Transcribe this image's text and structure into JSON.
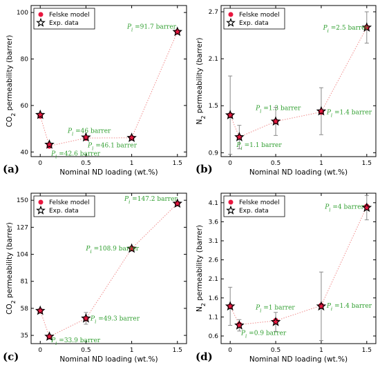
{
  "chart_data": [
    {
      "type": "scatter",
      "panel": "(a)",
      "xlabel": "Nominal ND loading (wt.%)",
      "ylabel": "CO2 permeability (barrer)",
      "ylabel_main": "CO",
      "ylabel_sub": "2",
      "ylabel_rest": " permeability (barrer)",
      "xlim": [
        -0.1,
        1.6
      ],
      "ylim": [
        38,
        103
      ],
      "xticks": [
        0,
        0.5,
        1,
        1.5
      ],
      "xtick_labels": [
        "0",
        "0.5",
        "1",
        "1.5"
      ],
      "yticks": [
        40,
        60,
        80,
        100
      ],
      "ytick_labels": [
        "40",
        "60",
        "80",
        "100"
      ],
      "legend": [
        "Felske model",
        "Exp. data"
      ],
      "series": [
        {
          "name": "Felske model",
          "x": [
            0,
            0.1,
            0.5,
            1,
            1.5
          ],
          "y": [
            55.5,
            42.6,
            46,
            46.1,
            91.7
          ]
        },
        {
          "name": "Exp. data",
          "x": [
            0,
            0.1,
            0.5,
            1,
            1.5
          ],
          "y": [
            56,
            43.2,
            46.3,
            46.1,
            91.7
          ],
          "err": [
            0,
            0,
            0,
            0,
            0
          ]
        }
      ],
      "annotations": [
        {
          "text": "=42.6 barrer",
          "x": 0.1,
          "y": 42.6,
          "dx": 0.02,
          "dy": -3.2
        },
        {
          "text": "=46 barrer",
          "x": 0.5,
          "y": 46,
          "dx": -0.2,
          "dy": 3.2
        },
        {
          "text": "=46.1 barrer",
          "x": 1,
          "y": 46.1,
          "dx": -0.48,
          "dy": -3.2
        },
        {
          "text": "=91.7 barrer",
          "x": 1.5,
          "y": 91.7,
          "dx": -0.55,
          "dy": 2.2
        }
      ]
    },
    {
      "type": "scatter",
      "panel": "(b)",
      "xlabel": "Nominal ND loading (wt.%)",
      "ylabel": "N2 permeability (barrer)",
      "ylabel_main": "N",
      "ylabel_sub": "2",
      "ylabel_rest": " permeability (barrer)",
      "xlim": [
        -0.1,
        1.6
      ],
      "ylim": [
        0.85,
        2.78
      ],
      "xticks": [
        0,
        0.5,
        1,
        1.5
      ],
      "xtick_labels": [
        "0",
        "0.5",
        "1",
        "1.5"
      ],
      "yticks": [
        0.9,
        1.5,
        2.1,
        2.7
      ],
      "ytick_labels": [
        "0.9",
        "1.5",
        "2.1",
        "2.7"
      ],
      "legend": [
        "Felske model",
        "Exp. data"
      ],
      "series": [
        {
          "name": "Felske model",
          "x": [
            0,
            0.1,
            0.5,
            1,
            1.5
          ],
          "y": [
            1.38,
            1.1,
            1.3,
            1.42,
            2.5
          ]
        },
        {
          "name": "Exp. data",
          "x": [
            0,
            0.1,
            0.5,
            1,
            1.5
          ],
          "y": [
            1.38,
            1.1,
            1.3,
            1.43,
            2.5
          ],
          "err": [
            0.5,
            0.15,
            0.18,
            0.3,
            0.2
          ]
        }
      ],
      "annotations": [
        {
          "text": "=1.1 barrer",
          "x": 0.1,
          "y": 1.1,
          "dx": -0.03,
          "dy": -0.1
        },
        {
          "text": "=1.3 barrer",
          "x": 0.5,
          "y": 1.3,
          "dx": -0.22,
          "dy": 0.17
        },
        {
          "text": "=1.4 barrer",
          "x": 1,
          "y": 1.42,
          "dx": 0.06,
          "dy": 0
        },
        {
          "text": "=2.5 barrer",
          "x": 1.5,
          "y": 2.5,
          "dx": -0.48,
          "dy": 0
        }
      ]
    },
    {
      "type": "scatter",
      "panel": "(c)",
      "xlabel": "Nominal ND loading (wt.%)",
      "ylabel": "CO2 permeability (barrer)",
      "ylabel_main": "CO",
      "ylabel_sub": "2",
      "ylabel_rest": " permeability (barrer)",
      "xlim": [
        -0.1,
        1.6
      ],
      "ylim": [
        28,
        156
      ],
      "xticks": [
        0,
        0.5,
        1,
        1.5
      ],
      "xtick_labels": [
        "0",
        "0.5",
        "1",
        "1.5"
      ],
      "yticks": [
        35,
        58,
        81,
        104,
        127,
        150
      ],
      "ytick_labels": [
        "35",
        "58",
        "81",
        "104",
        "127",
        "150"
      ],
      "legend": [
        "Felske model",
        "Exp. data"
      ],
      "series": [
        {
          "name": "Felske model",
          "x": [
            0,
            0.1,
            0.5,
            1,
            1.5
          ],
          "y": [
            56,
            33.9,
            49.3,
            108.9,
            147.2
          ]
        },
        {
          "name": "Exp. data",
          "x": [
            0,
            0.1,
            0.5,
            1,
            1.5
          ],
          "y": [
            56,
            34,
            49.5,
            108.9,
            147.2
          ],
          "err": [
            0,
            0,
            5,
            0,
            0
          ]
        }
      ],
      "annotations": [
        {
          "text": "=33.9 barrer",
          "x": 0.1,
          "y": 33.9,
          "dx": 0.02,
          "dy": -3
        },
        {
          "text": "=49.3 barrer",
          "x": 0.5,
          "y": 49.3,
          "dx": 0.05,
          "dy": 0
        },
        {
          "text": "=108.9 barrer",
          "x": 1,
          "y": 108.9,
          "dx": -0.5,
          "dy": 0
        },
        {
          "text": "=147.2 barrer",
          "x": 1.5,
          "y": 147.2,
          "dx": -0.58,
          "dy": 4
        }
      ]
    },
    {
      "type": "scatter",
      "panel": "(d)",
      "xlabel": "Nominal ND loading (wt.%)",
      "ylabel": "N2 permeability (barrer)",
      "ylabel_main": "N",
      "ylabel_sub": "2",
      "ylabel_rest": " permeability (barrer)",
      "xlim": [
        -0.1,
        1.6
      ],
      "ylim": [
        0.4,
        4.35
      ],
      "xticks": [
        0,
        0.5,
        1,
        1.5
      ],
      "xtick_labels": [
        "0",
        "0.5",
        "1",
        "1.5"
      ],
      "yticks": [
        0.6,
        1.1,
        1.6,
        2.1,
        2.6,
        3.1,
        3.6,
        4.1
      ],
      "ytick_labels": [
        "0.6",
        "1.1",
        "1.6",
        "2.1",
        "2.6",
        "3.1",
        "3.6",
        "4.1"
      ],
      "legend": [
        "Felske model",
        "Exp. data"
      ],
      "series": [
        {
          "name": "Felske model",
          "x": [
            0,
            0.1,
            0.5,
            1,
            1.5
          ],
          "y": [
            1.38,
            0.9,
            1,
            1.4,
            4
          ]
        },
        {
          "name": "Exp. data",
          "x": [
            0,
            0.1,
            0.5,
            1,
            1.5
          ],
          "y": [
            1.38,
            0.88,
            0.97,
            1.38,
            3.97
          ],
          "err": [
            0.5,
            0.15,
            0.25,
            0.9,
            0.32
          ]
        }
      ],
      "annotations": [
        {
          "text": "=0.9 barrer",
          "x": 0.1,
          "y": 0.9,
          "dx": 0.02,
          "dy": -0.22
        },
        {
          "text": "=1 barrer",
          "x": 0.5,
          "y": 1,
          "dx": -0.22,
          "dy": 0.35
        },
        {
          "text": "=1.4 barrer",
          "x": 1,
          "y": 1.4,
          "dx": 0.06,
          "dy": 0
        },
        {
          "text": "=4 barrer",
          "x": 1.5,
          "y": 4,
          "dx": -0.46,
          "dy": 0
        }
      ]
    }
  ],
  "colors": {
    "model_marker": "#e8173f",
    "exp_marker_stroke": "#000000",
    "line": "#f08a8a",
    "annotation": "#2e9e2e",
    "error_bar": "#888888"
  },
  "annotation_symbol": "P",
  "annotation_subscript": "i"
}
